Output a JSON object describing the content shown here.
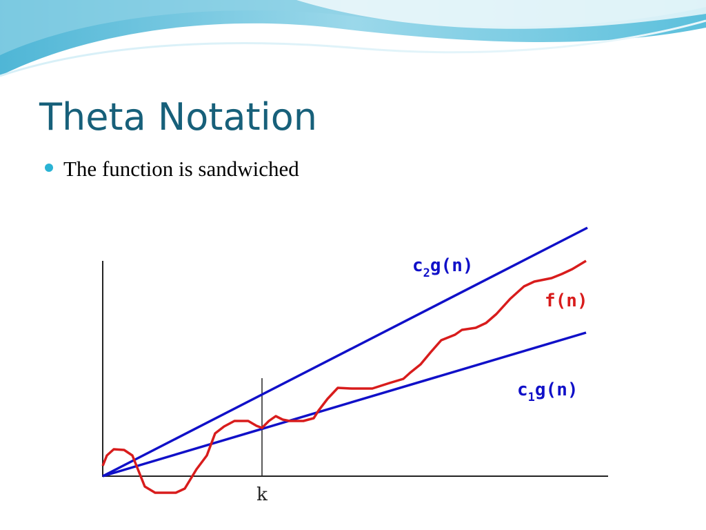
{
  "slide": {
    "title": "Theta Notation",
    "bullets": [
      "The function is sandwiched"
    ],
    "diagram": {
      "upper_label": {
        "base": "c",
        "subscript": "2",
        "rest": "g(n)"
      },
      "function_label": "f(n)",
      "lower_label": {
        "base": "c",
        "subscript": "1",
        "rest": "g(n)"
      },
      "threshold_label": "k"
    }
  }
}
